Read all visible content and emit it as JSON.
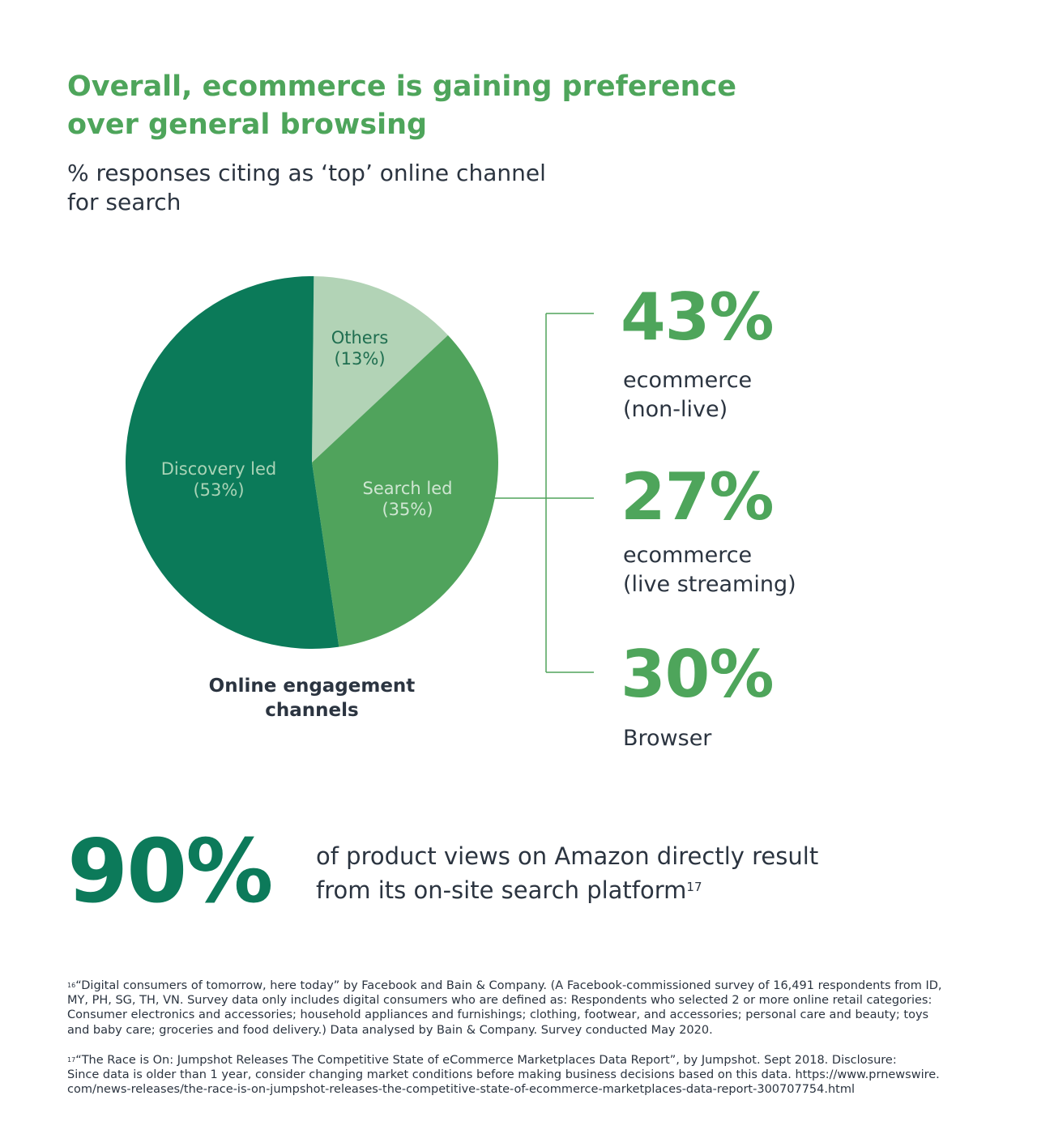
{
  "header": {
    "title_line1": "Overall, ecommerce is gaining preference",
    "title_line2": "over general browsing",
    "subtitle_line1": "% responses citing as ‘top’ online channel",
    "subtitle_line2": "for search"
  },
  "chart_data": {
    "type": "pie",
    "caption_line1": "Online engagement",
    "caption_line2": "channels",
    "slices": [
      {
        "name": "Others",
        "value": 13,
        "value_label": "(13%)",
        "color": "#b2d3b6",
        "label_color": "#1f6e50"
      },
      {
        "name": "Search led",
        "value": 35,
        "value_label": "(35%)",
        "color": "#50a35c",
        "label_color": "#cfe6d2"
      },
      {
        "name": "Discovery led",
        "value": 53,
        "value_label": "(53%)",
        "color": "#0b7a59",
        "label_color": "#a9d3b6"
      }
    ],
    "breakdown": {
      "of_slice": "Search led",
      "items": [
        {
          "value": "43%",
          "label_line1": "ecommerce",
          "label_line2": "(non-live)"
        },
        {
          "value": "27%",
          "label_line1": "ecommerce",
          "label_line2": "(live streaming)"
        },
        {
          "value": "30%",
          "label_line1": "Browser",
          "label_line2": ""
        }
      ],
      "connector_color": "#50a35c"
    }
  },
  "highlight": {
    "value": "90%",
    "text_line1": "of product views on Amazon directly result",
    "text_line2": "from its on-site search platform",
    "footnote_ref": "17"
  },
  "footnotes": [
    {
      "marker": "16",
      "lines": [
        "“Digital consumers of tomorrow, here today” by Facebook and Bain & Company. (A Facebook-commissioned survey of 16,491 respondents from ID,",
        "MY, PH, SG, TH, VN. Survey data only includes digital consumers who are defined as: Respondents who selected 2 or more online retail categories:",
        "Consumer electronics and accessories; household appliances and furnishings; clothing, footwear, and accessories; personal care and beauty; toys",
        "and baby care; groceries and food delivery.) Data analysed by Bain & Company. Survey conducted May 2020."
      ]
    },
    {
      "marker": "17",
      "lines": [
        "“The Race is On: Jumpshot Releases The Competitive State of eCommerce Marketplaces Data Report”, by Jumpshot. Sept 2018. Disclosure:",
        "Since data is older than 1 year, consider changing market conditions before making business decisions based on this data. https://www.prnewswire.",
        "com/news-releases/the-race-is-on-jumpshot-releases-the-competitive-state-of-ecommerce-marketplaces-data-report-300707754.html"
      ]
    }
  ]
}
